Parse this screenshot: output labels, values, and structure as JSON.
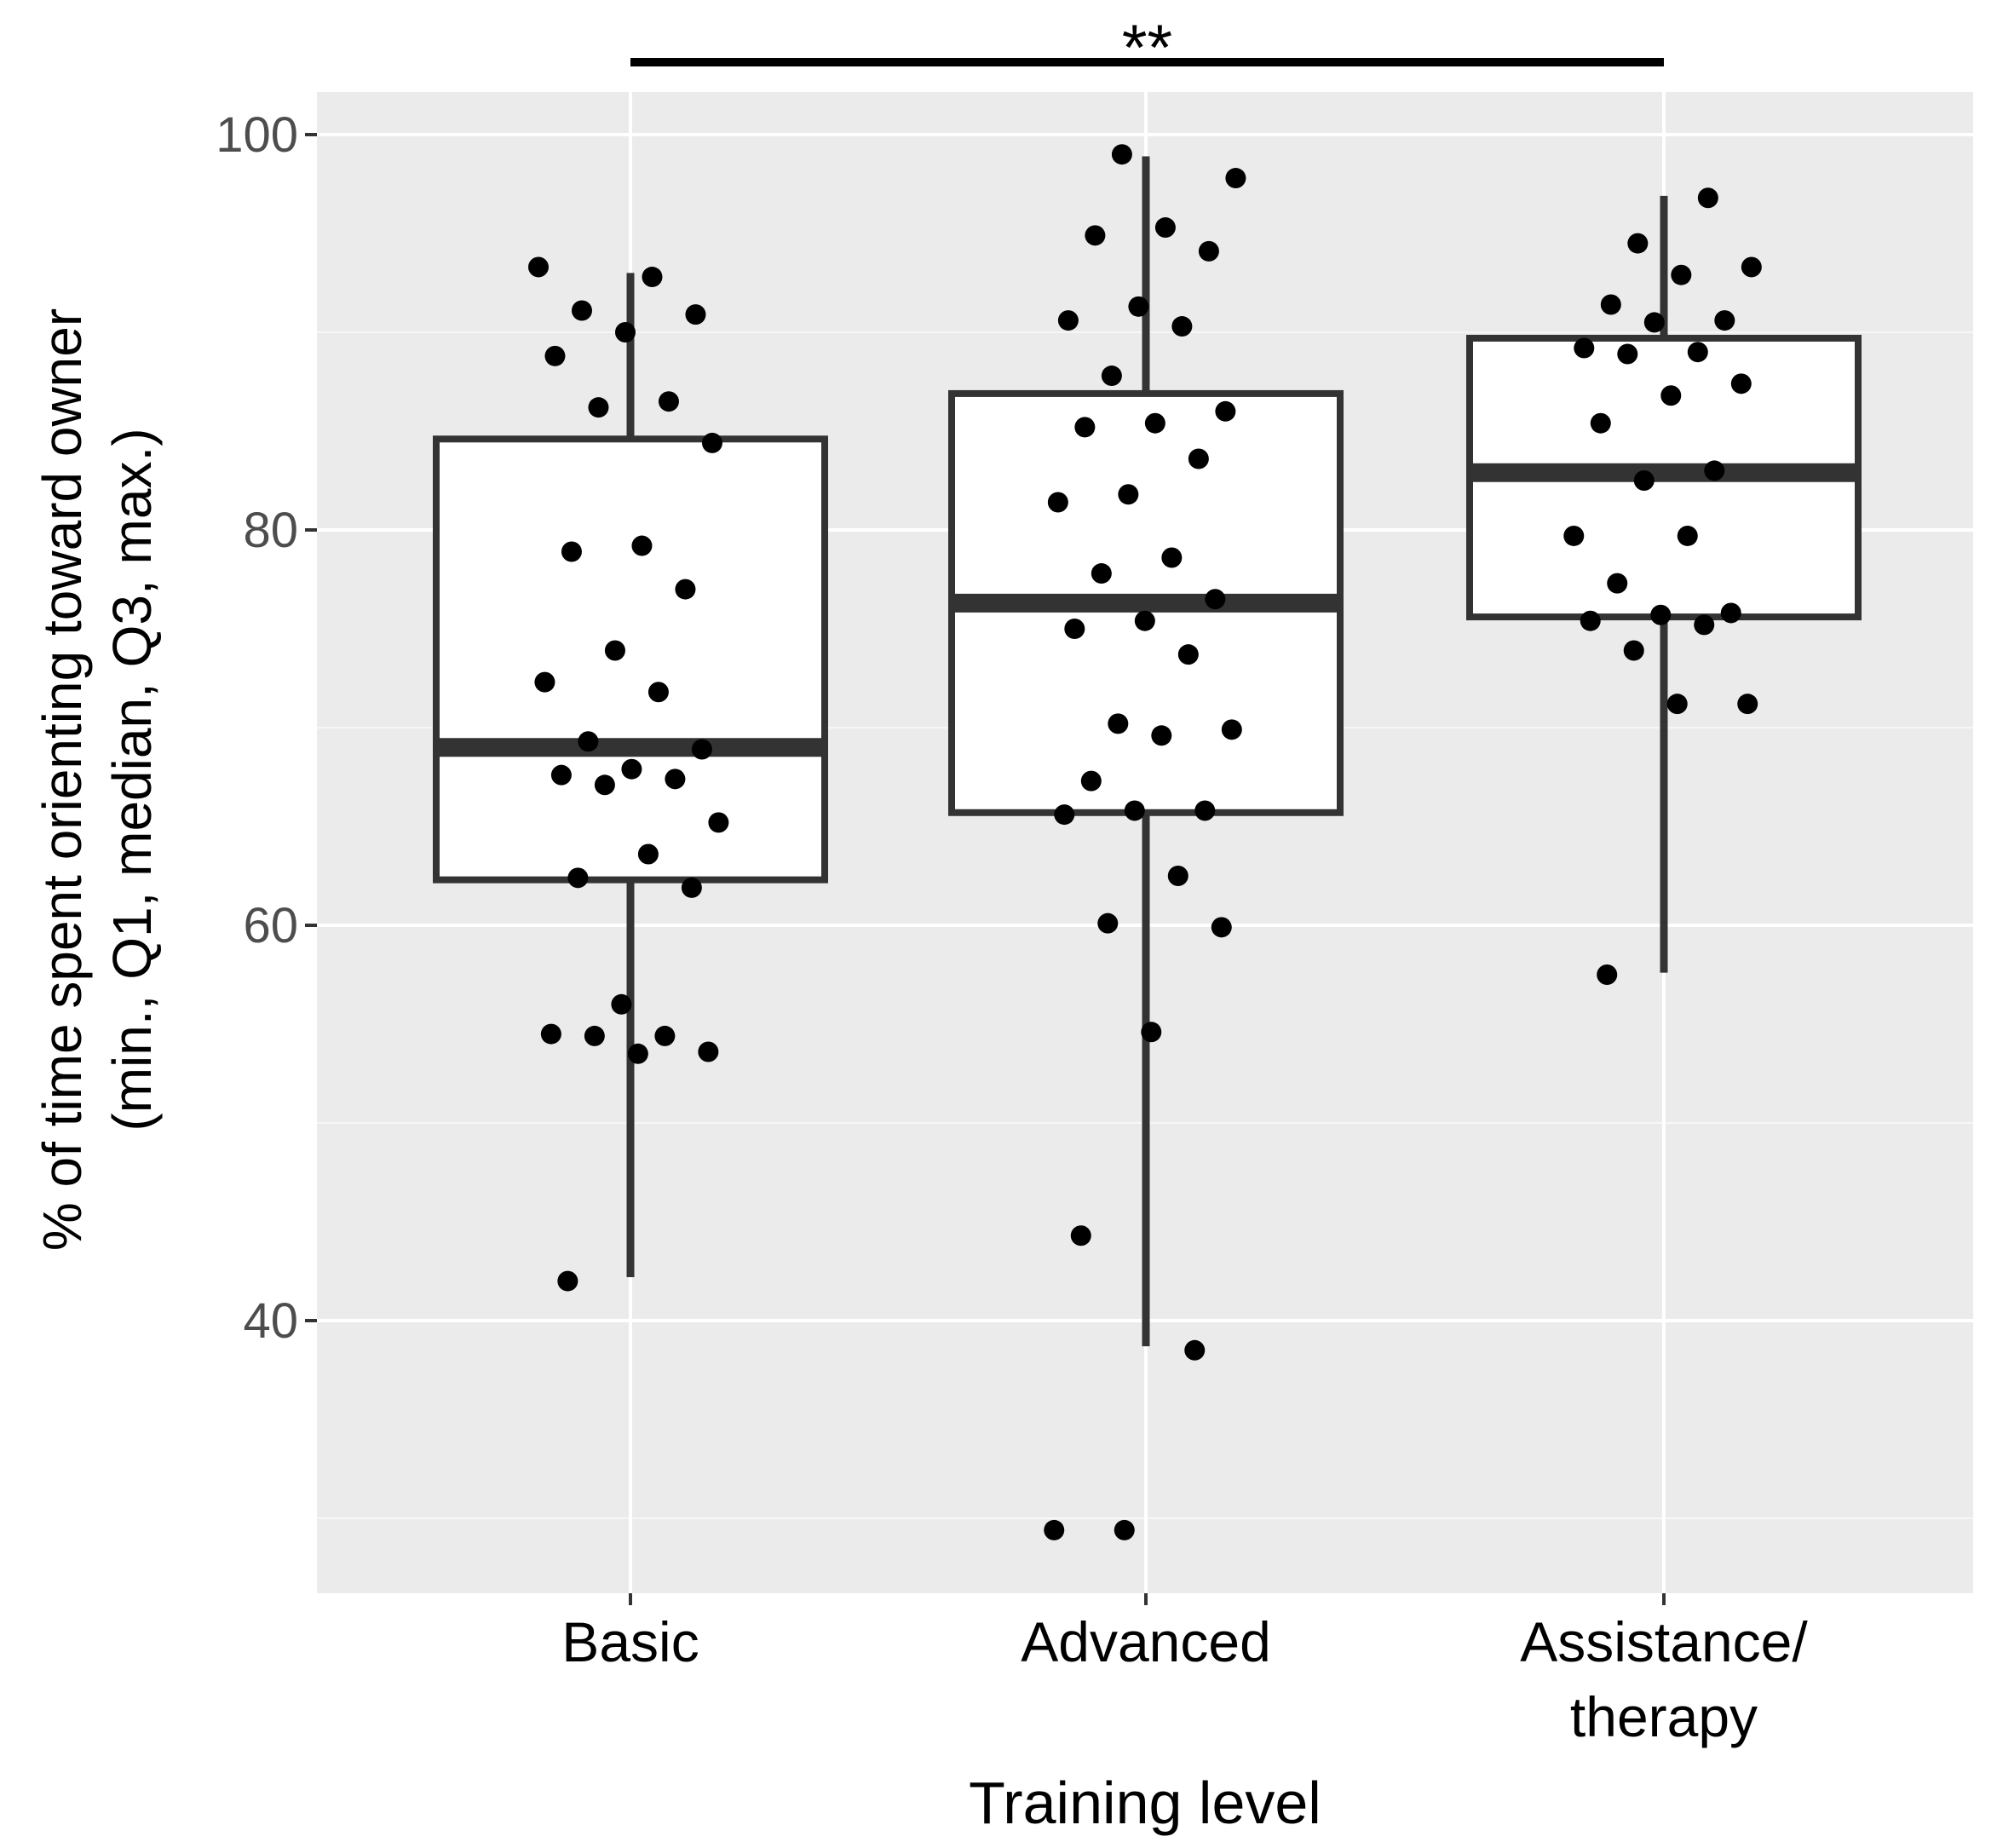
{
  "chart_data": {
    "type": "box",
    "title": "",
    "xlabel": "Training level",
    "ylabel_lines": [
      "% of time spent orienting toward owner",
      "(min., Q1, median, Q3, max.)"
    ],
    "ylim": [
      26,
      102
    ],
    "y_ticks": [
      40,
      60,
      80,
      100
    ],
    "y_minor_ticks": [
      30,
      50,
      70,
      90
    ],
    "grid": true,
    "legend": "none",
    "categories": [
      {
        "key": "basic",
        "label_lines": [
          "Basic"
        ]
      },
      {
        "key": "advanced",
        "label_lines": [
          "Advanced"
        ]
      },
      {
        "key": "assistance",
        "label_lines": [
          "Assistance/",
          "therapy"
        ]
      }
    ],
    "boxes": [
      {
        "category": "Basic",
        "min": 42.2,
        "q1": 62.3,
        "median": 69.0,
        "q3": 84.6,
        "max": 93.0
      },
      {
        "category": "Advanced",
        "min": 38.7,
        "q1": 65.7,
        "median": 76.3,
        "q3": 86.9,
        "max": 98.9
      },
      {
        "category": "Assistance/therapy",
        "min": 57.6,
        "q1": 75.6,
        "median": 82.9,
        "q3": 89.7,
        "max": 96.9
      }
    ],
    "points": [
      {
        "category": "Basic",
        "values": [
          93.3,
          92.8,
          91.1,
          90.9,
          90.0,
          88.8,
          86.5,
          86.2,
          84.4,
          79.2,
          78.9,
          77.0,
          73.9,
          72.3,
          71.8,
          69.3,
          68.9,
          67.9,
          67.6,
          67.4,
          67.1,
          65.2,
          63.6,
          62.4,
          61.9,
          56.0,
          54.5,
          54.4,
          54.4,
          53.6,
          53.5,
          42.0
        ]
      },
      {
        "category": "Advanced",
        "values": [
          99.0,
          97.8,
          95.3,
          94.9,
          94.1,
          91.3,
          90.6,
          90.3,
          87.8,
          86.0,
          85.4,
          85.2,
          83.6,
          81.8,
          81.4,
          78.6,
          77.8,
          76.5,
          75.4,
          75.0,
          73.7,
          70.2,
          69.9,
          69.6,
          67.3,
          65.8,
          65.8,
          65.6,
          62.5,
          60.1,
          59.9,
          54.6,
          44.3,
          38.5,
          29.4,
          29.4
        ]
      },
      {
        "category": "Assistance/therapy",
        "values": [
          96.8,
          94.5,
          93.3,
          92.9,
          91.4,
          90.6,
          90.5,
          89.2,
          89.0,
          88.9,
          87.4,
          86.8,
          85.4,
          83.0,
          82.5,
          79.7,
          79.7,
          77.3,
          75.8,
          75.7,
          75.4,
          75.2,
          73.9,
          71.2,
          71.2,
          57.5
        ]
      }
    ],
    "significance": {
      "from": "Basic",
      "to": "Assistance/therapy",
      "label": "**"
    }
  }
}
